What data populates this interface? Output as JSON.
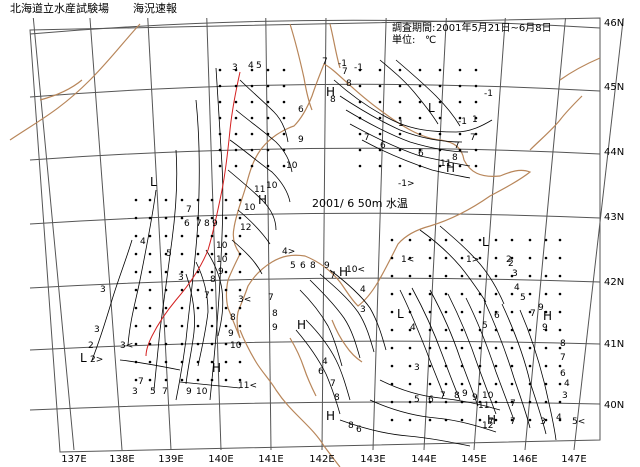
{
  "header": {
    "org": "北海道立水産試験場",
    "report": "海況速報",
    "period_label": "調査期間:",
    "period_value": "2001年5月21日~6月8日",
    "unit_label": "単位:",
    "unit_value": "℃"
  },
  "caption": {
    "date": "2001/ 6",
    "depth": "50m",
    "variable": "水温"
  },
  "axes": {
    "lon_labels": [
      "137E",
      "138E",
      "139E",
      "140E",
      "141E",
      "142E",
      "143E",
      "144E",
      "145E",
      "146E",
      "147E"
    ],
    "lat_labels": [
      "46N",
      "45N",
      "44N",
      "43N",
      "42N",
      "41N",
      "40N"
    ]
  },
  "annotations": {
    "lows": [
      "L",
      "L",
      "L",
      "L",
      "L"
    ],
    "highs": [
      "H",
      "H",
      "H",
      "H",
      "H",
      "H",
      "H",
      "H",
      "H"
    ],
    "contour_labels": [
      "3",
      "4",
      "5",
      "6",
      "7",
      "8",
      "9",
      "10",
      "11",
      "12",
      "-1",
      "1",
      "2",
      "10<",
      "11<",
      "1<",
      "1>",
      "3<",
      "-1>",
      "2>",
      "4>",
      "5<"
    ]
  },
  "colors": {
    "coastline": "#b8865a",
    "contour": "#000000",
    "highlight_contour": "#d42020",
    "grid": "#555555"
  }
}
